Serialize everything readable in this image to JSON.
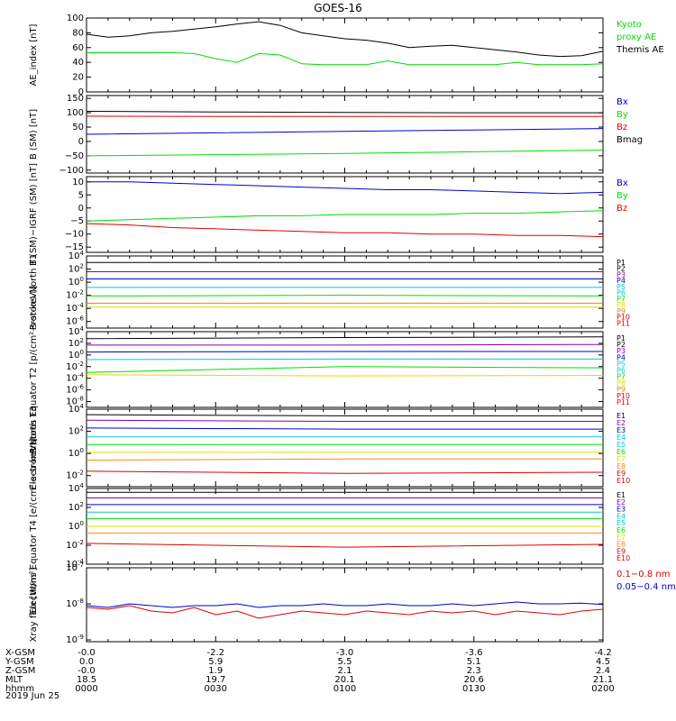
{
  "title": "GOES-16",
  "date": "2019 Jun 25",
  "time_ticks": [
    "0000",
    "0030",
    "0100",
    "0130",
    "0200"
  ],
  "ephemeris": {
    "rows": [
      {
        "label": "X-GSM",
        "values": [
          "-0.0",
          "-2.2",
          "-3.0",
          "-3.6",
          "-4.2"
        ]
      },
      {
        "label": "Y-GSM",
        "values": [
          "0.0",
          "5.9",
          "5.5",
          "5.1",
          "4.5"
        ]
      },
      {
        "label": "Z-GSM",
        "values": [
          "-0.0",
          "1.9",
          "2.1",
          "2.3",
          "2.4"
        ]
      },
      {
        "label": "MLT",
        "values": [
          "18.5",
          "19.7",
          "20.1",
          "20.6",
          "21.1"
        ]
      },
      {
        "label": "hhmm",
        "values": [
          "0000",
          "0030",
          "0100",
          "0130",
          "0200"
        ]
      }
    ]
  },
  "colors": {
    "black": "#000000",
    "green": "#00dd00",
    "red": "#dd0000",
    "blue": "#0000cc",
    "purple": "#8800aa",
    "cyan": "#00cccc",
    "yellow": "#dddd00",
    "orange": "#ff8800"
  },
  "chart_data": [
    {
      "type": "line",
      "ylabel": "AE_index [nT]",
      "y_ticks": [
        "100",
        "80",
        "60",
        "40",
        "20",
        "0"
      ],
      "ylim": [
        0,
        100
      ],
      "log": false,
      "x": [
        0,
        5,
        10,
        15,
        20,
        25,
        30,
        35,
        40,
        45,
        50,
        55,
        60,
        65,
        70,
        75,
        80,
        85,
        90,
        95,
        100,
        105,
        110,
        115,
        120
      ],
      "series": [
        {
          "name": "Themis AE",
          "color": "#000000",
          "values": [
            78,
            74,
            76,
            80,
            82,
            85,
            88,
            92,
            95,
            90,
            80,
            76,
            72,
            70,
            66,
            60,
            62,
            63,
            60,
            57,
            54,
            50,
            48,
            49,
            55
          ]
        },
        {
          "name": "Kyoto proxy AE",
          "color": "#00dd00",
          "values": [
            53,
            53,
            53,
            53,
            53,
            52,
            45,
            40,
            52,
            50,
            38,
            37,
            37,
            37,
            42,
            37,
            37,
            37,
            37,
            37,
            40,
            37,
            37,
            37,
            38
          ]
        }
      ],
      "legend": [
        {
          "text": "Kyoto",
          "color": "#00dd00"
        },
        {
          "text": "proxy AE",
          "color": "#00dd00"
        },
        {
          "text": "Themis AE",
          "color": "#000000"
        }
      ]
    },
    {
      "type": "line",
      "ylabel": "B (SM) [nT]",
      "y_ticks": [
        "150",
        "100",
        "50",
        "0",
        "−50",
        "−100"
      ],
      "ylim": [
        -110,
        160
      ],
      "log": false,
      "x": [
        0,
        30,
        60,
        90,
        120
      ],
      "series": [
        {
          "name": "Bmag",
          "color": "#000000",
          "values": [
            105,
            103,
            101,
            100,
            100
          ]
        },
        {
          "name": "Bz",
          "color": "#dd0000",
          "values": [
            88,
            87,
            87,
            87,
            87
          ]
        },
        {
          "name": "Bx",
          "color": "#0000cc",
          "values": [
            25,
            30,
            35,
            40,
            45
          ]
        },
        {
          "name": "By",
          "color": "#00dd00",
          "values": [
            -50,
            -46,
            -42,
            -36,
            -30
          ]
        }
      ],
      "legend": [
        {
          "text": "Bx",
          "color": "#0000cc"
        },
        {
          "text": "By",
          "color": "#00dd00"
        },
        {
          "text": "Bz",
          "color": "#dd0000"
        },
        {
          "text": "Bmag",
          "color": "#000000"
        }
      ]
    },
    {
      "type": "line",
      "ylabel": "B (SM)−IGRF (SM) [nT]",
      "y_ticks": [
        "10",
        "5",
        "0",
        "−5",
        "−10",
        "−15"
      ],
      "ylim": [
        -17,
        12
      ],
      "log": false,
      "x": [
        0,
        10,
        20,
        30,
        40,
        50,
        60,
        70,
        80,
        90,
        100,
        110,
        120
      ],
      "series": [
        {
          "name": "Bx",
          "color": "#0000cc",
          "values": [
            10,
            10,
            9.5,
            9,
            8.5,
            8,
            7.5,
            7,
            7,
            6.5,
            6,
            5.5,
            6
          ]
        },
        {
          "name": "By",
          "color": "#00dd00",
          "values": [
            -5,
            -4.5,
            -4,
            -3.5,
            -3,
            -3,
            -2.5,
            -2.5,
            -2.5,
            -2,
            -2,
            -1.5,
            -1
          ]
        },
        {
          "name": "Bz",
          "color": "#dd0000",
          "values": [
            -6,
            -6.5,
            -7.5,
            -8,
            -8.5,
            -9,
            -9.5,
            -9.5,
            -10,
            -10,
            -10.5,
            -10.5,
            -11
          ]
        }
      ],
      "legend": [
        {
          "text": "Bx",
          "color": "#0000cc"
        },
        {
          "text": "By",
          "color": "#00dd00"
        },
        {
          "text": "Bz",
          "color": "#dd0000"
        }
      ]
    },
    {
      "type": "line",
      "ylabel": "Protons North T1",
      "y_ticks": [
        "10^4",
        "10^2",
        "10^0",
        "10^-2",
        "10^-4",
        "10^-6"
      ],
      "ylim": [
        -7,
        4
      ],
      "log": true,
      "x": [
        0,
        60,
        120
      ],
      "series": [
        {
          "name": "P1",
          "color": "#000000",
          "values": [
            3.0,
            3.0,
            3.0
          ]
        },
        {
          "name": "P3",
          "color": "#8800aa",
          "values": [
            1.6,
            1.6,
            1.6
          ]
        },
        {
          "name": "P4",
          "color": "#0000cc",
          "values": [
            0.5,
            0.5,
            0.5
          ]
        },
        {
          "name": "P6",
          "color": "#00cccc",
          "values": [
            -0.8,
            -0.8,
            -0.8
          ]
        },
        {
          "name": "P7",
          "color": "#00dd00",
          "values": [
            -2.1,
            -2.0,
            -2.1
          ]
        },
        {
          "name": "P8",
          "color": "#dddd00",
          "values": [
            -3.8,
            -3.8,
            -3.8
          ]
        },
        {
          "name": "P9",
          "color": "#dd8800",
          "values": [
            -3.2,
            -3.2,
            -3.2
          ]
        }
      ],
      "legend": [
        {
          "text": "P1",
          "color": "#000000"
        },
        {
          "text": "P2",
          "color": "#000000"
        },
        {
          "text": "P3",
          "color": "#8800aa"
        },
        {
          "text": "P4",
          "color": "#0000cc"
        },
        {
          "text": "P5",
          "color": "#00cccc"
        },
        {
          "text": "P6",
          "color": "#00cccc"
        },
        {
          "text": "P7",
          "color": "#00dd00"
        },
        {
          "text": "P8",
          "color": "#dddd00"
        },
        {
          "text": "P9",
          "color": "#dd8800"
        },
        {
          "text": "P10",
          "color": "#dd0000"
        },
        {
          "text": "P11",
          "color": "#dd0000"
        }
      ]
    },
    {
      "type": "line",
      "ylabel": "Protons Equator T2 [p/(cm²-s-sr-keV)]",
      "y_ticks": [
        "10^4",
        "10^2",
        "10^0",
        "10^-2",
        "10^-4",
        "10^-6",
        "10^-8"
      ],
      "ylim": [
        -9,
        4
      ],
      "log": true,
      "x": [
        0,
        60,
        120
      ],
      "series": [
        {
          "name": "P1",
          "color": "#000000",
          "values": [
            2.8,
            3.0,
            3.1
          ]
        },
        {
          "name": "P3",
          "color": "#8800aa",
          "values": [
            1.7,
            1.7,
            1.8
          ]
        },
        {
          "name": "P4",
          "color": "#0000cc",
          "values": [
            0.5,
            0.6,
            0.6
          ]
        },
        {
          "name": "P6",
          "color": "#00cccc",
          "values": [
            -0.8,
            -0.7,
            -0.7
          ]
        },
        {
          "name": "P7",
          "color": "#00dd00",
          "values": [
            -3.0,
            -2.0,
            -2.2
          ]
        },
        {
          "name": "P8",
          "color": "#dddd00",
          "values": [
            -3.4,
            -3.6,
            -3.5
          ]
        }
      ],
      "legend": [
        {
          "text": "P1",
          "color": "#000000"
        },
        {
          "text": "P2",
          "color": "#000000"
        },
        {
          "text": "P3",
          "color": "#8800aa"
        },
        {
          "text": "P4",
          "color": "#0000cc"
        },
        {
          "text": "P5",
          "color": "#00cccc"
        },
        {
          "text": "P6",
          "color": "#00cccc"
        },
        {
          "text": "P7",
          "color": "#00dd00"
        },
        {
          "text": "P8",
          "color": "#dddd00"
        },
        {
          "text": "P9",
          "color": "#dd8800"
        },
        {
          "text": "P10",
          "color": "#dd0000"
        },
        {
          "text": "P11",
          "color": "#dd0000"
        }
      ]
    },
    {
      "type": "line",
      "ylabel": "Electrons North T3",
      "y_ticks": [
        "10^4",
        "10^2",
        "10^0",
        "10^-2"
      ],
      "ylim": [
        -3,
        4
      ],
      "log": true,
      "x": [
        0,
        60,
        120
      ],
      "series": [
        {
          "name": "E1",
          "color": "#000000",
          "values": [
            3.5,
            3.4,
            3.4
          ]
        },
        {
          "name": "E2",
          "color": "#8800aa",
          "values": [
            3.0,
            2.9,
            2.9
          ]
        },
        {
          "name": "E3",
          "color": "#0000cc",
          "values": [
            2.3,
            2.2,
            2.2
          ]
        },
        {
          "name": "E4",
          "color": "#00cccc",
          "values": [
            1.5,
            1.5,
            1.5
          ]
        },
        {
          "name": "E5",
          "color": "#00dd00",
          "values": [
            0.8,
            0.8,
            0.8
          ]
        },
        {
          "name": "E6",
          "color": "#dddd00",
          "values": [
            0.1,
            0.1,
            0.1
          ]
        },
        {
          "name": "E7",
          "color": "#ff8800",
          "values": [
            -0.6,
            -0.5,
            -0.5
          ]
        },
        {
          "name": "E9",
          "color": "#dd0000",
          "values": [
            -1.6,
            -1.8,
            -1.7
          ]
        }
      ],
      "legend": [
        {
          "text": "E1",
          "color": "#000000"
        },
        {
          "text": "E2",
          "color": "#8800aa"
        },
        {
          "text": "E3",
          "color": "#0000cc"
        },
        {
          "text": "E4",
          "color": "#00cccc"
        },
        {
          "text": "E5",
          "color": "#00cccc"
        },
        {
          "text": "E6",
          "color": "#00dd00"
        },
        {
          "text": "E7",
          "color": "#dddd00"
        },
        {
          "text": "E8",
          "color": "#ff8800"
        },
        {
          "text": "E9",
          "color": "#dd0000"
        },
        {
          "text": "E10",
          "color": "#dd0000"
        }
      ]
    },
    {
      "type": "line",
      "ylabel": "Electrons Equator T4 [e/(cm²-s-sr-keV)]",
      "y_ticks": [
        "10^4",
        "10^2",
        "10^0",
        "10^-2",
        "10^-4"
      ],
      "ylim": [
        -4,
        4
      ],
      "log": true,
      "x": [
        0,
        60,
        120
      ],
      "series": [
        {
          "name": "E1",
          "color": "#000000",
          "values": [
            3.6,
            3.6,
            3.6
          ]
        },
        {
          "name": "E2",
          "color": "#8800aa",
          "values": [
            3.0,
            3.0,
            3.0
          ]
        },
        {
          "name": "E3",
          "color": "#0000cc",
          "values": [
            2.3,
            2.3,
            2.3
          ]
        },
        {
          "name": "E4",
          "color": "#00cccc",
          "values": [
            1.5,
            1.5,
            1.5
          ]
        },
        {
          "name": "E5",
          "color": "#00dd00",
          "values": [
            0.8,
            0.8,
            0.8
          ]
        },
        {
          "name": "E6",
          "color": "#dddd00",
          "values": [
            0.0,
            0.0,
            0.0
          ]
        },
        {
          "name": "E7",
          "color": "#ff8800",
          "values": [
            -0.7,
            -0.7,
            -0.7
          ]
        },
        {
          "name": "E9",
          "color": "#dd0000",
          "values": [
            -1.8,
            -2.2,
            -1.9
          ]
        }
      ],
      "legend": [
        {
          "text": "E1",
          "color": "#000000"
        },
        {
          "text": "E2",
          "color": "#8800aa"
        },
        {
          "text": "E3",
          "color": "#0000cc"
        },
        {
          "text": "E4",
          "color": "#00cccc"
        },
        {
          "text": "E5",
          "color": "#00cccc"
        },
        {
          "text": "E6",
          "color": "#00dd00"
        },
        {
          "text": "E7",
          "color": "#dddd00"
        },
        {
          "text": "E8",
          "color": "#ff8800"
        },
        {
          "text": "E9",
          "color": "#dd0000"
        },
        {
          "text": "E10",
          "color": "#dd0000"
        }
      ]
    },
    {
      "type": "line",
      "ylabel": "Xray flux [W/m²]",
      "y_ticks": [
        "10^-7",
        "10^-8",
        "10^-9"
      ],
      "ylim": [
        -9.05,
        -7
      ],
      "log": true,
      "x": [
        0,
        5,
        10,
        15,
        20,
        25,
        30,
        35,
        40,
        45,
        50,
        55,
        60,
        65,
        70,
        75,
        80,
        85,
        90,
        95,
        100,
        105,
        110,
        115,
        120
      ],
      "series": [
        {
          "name": "0.1−0.8 nm",
          "color": "#dd0000",
          "values": [
            -8.1,
            -8.15,
            -8.05,
            -8.2,
            -8.25,
            -8.1,
            -8.3,
            -8.2,
            -8.4,
            -8.3,
            -8.2,
            -8.25,
            -8.3,
            -8.2,
            -8.25,
            -8.3,
            -8.2,
            -8.25,
            -8.2,
            -8.3,
            -8.2,
            -8.25,
            -8.3,
            -8.2,
            -8.15
          ]
        },
        {
          "name": "0.05−0.4 nm",
          "color": "#0000cc",
          "values": [
            -8.05,
            -8.1,
            -8.0,
            -8.05,
            -8.1,
            -8.05,
            -8.05,
            -8.0,
            -8.1,
            -8.05,
            -8.05,
            -8.0,
            -8.05,
            -8.05,
            -8.0,
            -8.05,
            -8.05,
            -8.0,
            -8.05,
            -8.0,
            -7.95,
            -8.0,
            -8.0,
            -7.98,
            -8.02
          ]
        }
      ],
      "legend": [
        {
          "text": "0.1−0.8 nm",
          "color": "#dd0000"
        },
        {
          "text": "0.05−0.4 nm",
          "color": "#0000cc"
        }
      ]
    }
  ]
}
